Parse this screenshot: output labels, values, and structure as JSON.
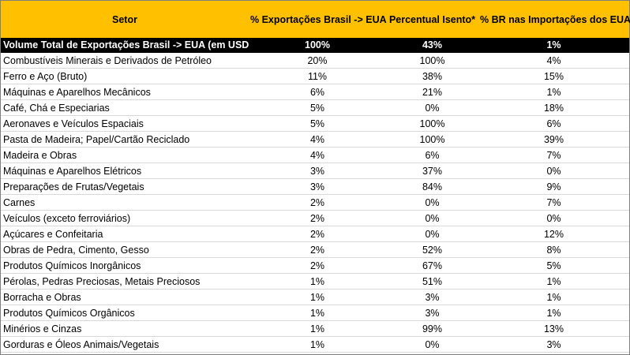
{
  "header": {
    "col_sector": "Setor",
    "col_exports_pct": "% Exportações Brasil -> EUA",
    "col_exempt_pct": "Percentual Isento*",
    "col_br_share": "% BR nas Importações dos EUA"
  },
  "total": {
    "label": "Volume Total de Exportações Brasil -> EUA (em USD)",
    "exports": "100%",
    "exempt": "43%",
    "share": "1%"
  },
  "rows": [
    {
      "sector": "Combustíveis Minerais e Derivados de Petróleo",
      "exports": "20%",
      "exempt": "100%",
      "share": "4%"
    },
    {
      "sector": "Ferro e Aço (Bruto)",
      "exports": "11%",
      "exempt": "38%",
      "share": "15%"
    },
    {
      "sector": "Máquinas e Aparelhos Mecânicos",
      "exports": "6%",
      "exempt": "21%",
      "share": "1%"
    },
    {
      "sector": "Café, Chá e Especiarias",
      "exports": "5%",
      "exempt": "0%",
      "share": "18%"
    },
    {
      "sector": "Aeronaves e Veículos Espaciais",
      "exports": "5%",
      "exempt": "100%",
      "share": "6%"
    },
    {
      "sector": "Pasta de Madeira; Papel/Cartão Reciclado",
      "exports": "4%",
      "exempt": "100%",
      "share": "39%"
    },
    {
      "sector": "Madeira e Obras",
      "exports": "4%",
      "exempt": "6%",
      "share": "7%"
    },
    {
      "sector": "Máquinas e Aparelhos Elétricos",
      "exports": "3%",
      "exempt": "37%",
      "share": "0%"
    },
    {
      "sector": "Preparações de Frutas/Vegetais",
      "exports": "3%",
      "exempt": "84%",
      "share": "9%"
    },
    {
      "sector": "Carnes",
      "exports": "2%",
      "exempt": "0%",
      "share": "7%"
    },
    {
      "sector": "Veículos (exceto ferroviários)",
      "exports": "2%",
      "exempt": "0%",
      "share": "0%"
    },
    {
      "sector": "Açúcares e Confeitaria",
      "exports": "2%",
      "exempt": "0%",
      "share": "12%"
    },
    {
      "sector": "Obras de Pedra, Cimento, Gesso",
      "exports": "2%",
      "exempt": "52%",
      "share": "8%"
    },
    {
      "sector": "Produtos Químicos Inorgânicos",
      "exports": "2%",
      "exempt": "67%",
      "share": "5%"
    },
    {
      "sector": "Pérolas, Pedras Preciosas, Metais Preciosos",
      "exports": "1%",
      "exempt": "51%",
      "share": "1%"
    },
    {
      "sector": "Borracha e Obras",
      "exports": "1%",
      "exempt": "3%",
      "share": "1%"
    },
    {
      "sector": "Produtos Químicos Orgânicos",
      "exports": "1%",
      "exempt": "3%",
      "share": "1%"
    },
    {
      "sector": "Minérios e Cinzas",
      "exports": "1%",
      "exempt": "99%",
      "share": "13%"
    },
    {
      "sector": "Gorduras e Óleos Animais/Vegetais",
      "exports": "1%",
      "exempt": "0%",
      "share": "3%"
    }
  ]
}
